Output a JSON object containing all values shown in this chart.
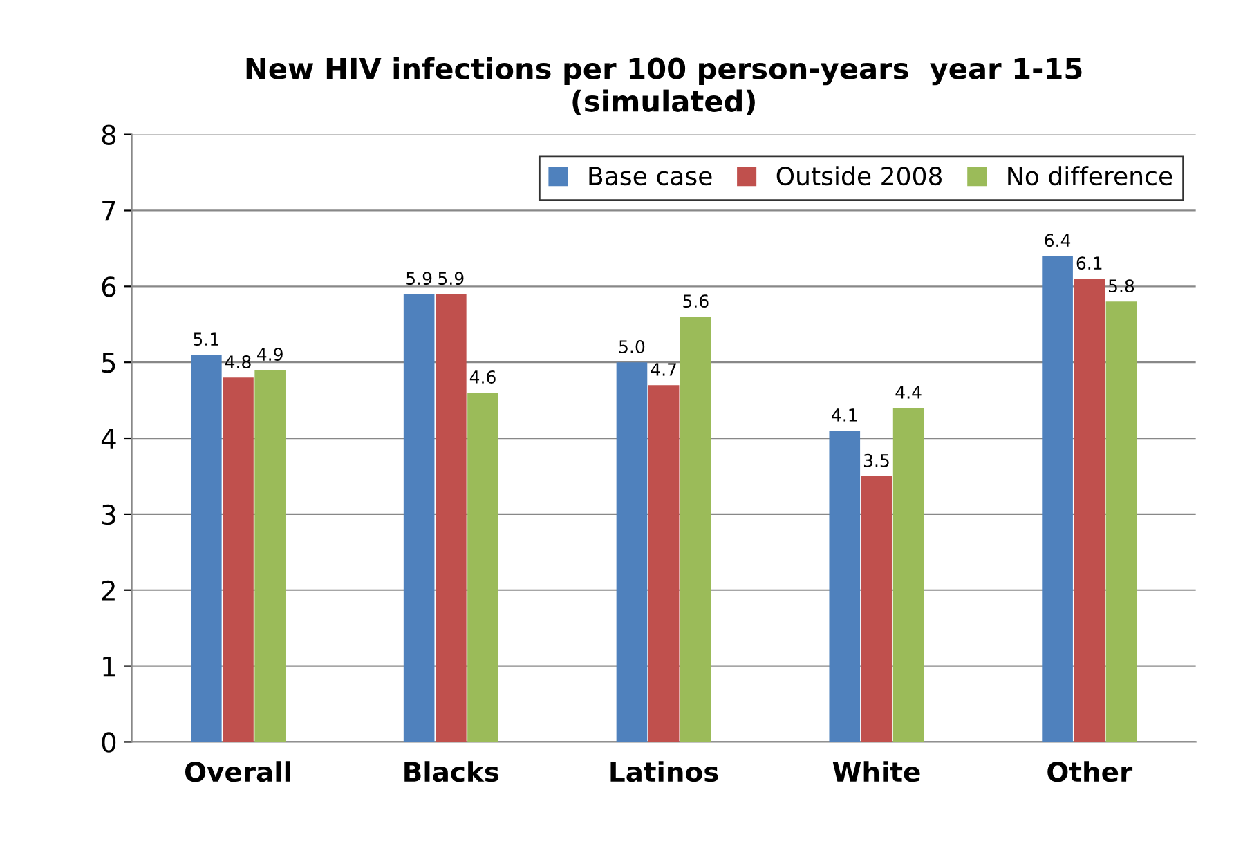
{
  "chart_data": {
    "type": "bar",
    "title": "New HIV infections per 100 person-years  year 1-15\n(simulated)",
    "categories": [
      "Overall",
      "Blacks",
      "Latinos",
      "White",
      "Other"
    ],
    "series": [
      {
        "name": "Base case",
        "color": "#4f81bd",
        "values": [
          5.1,
          5.9,
          5.0,
          4.1,
          6.4
        ],
        "value_labels": [
          "5.1",
          "5.9",
          "5.0",
          "4.1",
          "6.4"
        ]
      },
      {
        "name": "Outside 2008",
        "color": "#c0504d",
        "values": [
          4.8,
          5.9,
          4.7,
          3.5,
          6.1
        ],
        "value_labels": [
          "4.8",
          "5.9",
          "4.7",
          "3.5",
          "6.1"
        ]
      },
      {
        "name": "No difference",
        "color": "#9bbb59",
        "values": [
          4.9,
          4.6,
          5.6,
          4.4,
          5.8
        ],
        "value_labels": [
          "4.9",
          "4.6",
          "5.6",
          "4.4",
          "5.8"
        ]
      }
    ],
    "ylim": [
      0,
      8
    ],
    "yticks": [
      0,
      1,
      2,
      3,
      4,
      5,
      6,
      7,
      8
    ],
    "grid": "y",
    "legend": "top right"
  }
}
